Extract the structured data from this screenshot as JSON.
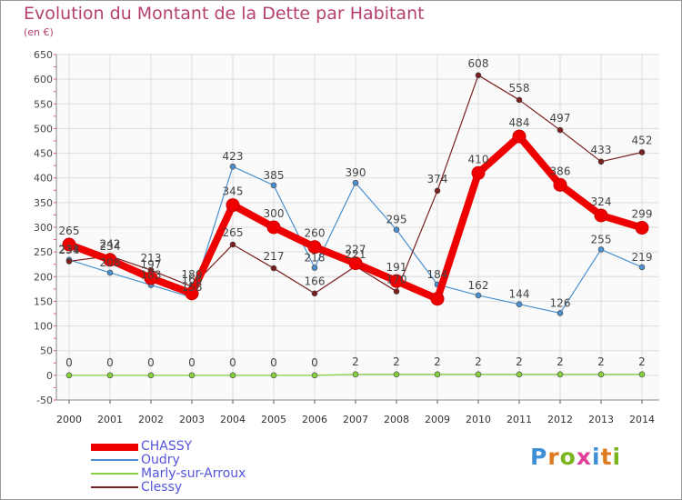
{
  "title": "Evolution du Montant de la Dette par Habitant",
  "subtitle": "(en €)",
  "logo": {
    "text": "Proxiti",
    "letter_colors": [
      "#3d8fd6",
      "#e07a1f",
      "#7ab51d",
      "#e0409a",
      "#3d8fd6",
      "#e07a1f",
      "#7ab51d"
    ]
  },
  "chart_data": {
    "type": "line",
    "x": [
      "2000",
      "2001",
      "2002",
      "2003",
      "2004",
      "2005",
      "2006",
      "2007",
      "2008",
      "2009",
      "2010",
      "2011",
      "2012",
      "2013",
      "2014"
    ],
    "ylim": [
      -50,
      650
    ],
    "yticks": [
      -50,
      0,
      50,
      100,
      150,
      200,
      250,
      300,
      350,
      400,
      450,
      500,
      550,
      600,
      650
    ],
    "grid": true,
    "legend_position": "bottom-left",
    "series": [
      {
        "name": "CHASSY",
        "color": "#ee0000",
        "values": [
          265,
          234,
          197,
          166,
          345,
          300,
          260,
          227,
          191,
          155,
          410,
          484,
          386,
          324,
          299
        ],
        "labels": [
          "265",
          "234",
          "197",
          "166",
          "345",
          "300",
          "260",
          "227",
          "191",
          "",
          "410",
          "484",
          "386",
          "324",
          "299"
        ]
      },
      {
        "name": "Oudry",
        "color": "#4a90d0",
        "values": [
          234,
          208,
          183,
          158,
          423,
          385,
          218,
          390,
          295,
          184,
          162,
          144,
          126,
          255,
          219
        ],
        "labels": [
          "234",
          "208",
          "183",
          "158",
          "423",
          "385",
          "218",
          "390",
          "295",
          "184",
          "162",
          "144",
          "126",
          "255",
          "219"
        ]
      },
      {
        "name": "Marly-sur-Arroux",
        "color": "#86cf3e",
        "values": [
          0,
          0,
          0,
          0,
          0,
          0,
          0,
          2,
          2,
          2,
          2,
          2,
          2,
          2,
          2
        ],
        "labels": [
          "0",
          "0",
          "0",
          "0",
          "0",
          "0",
          "0",
          "2",
          "2",
          "2",
          "2",
          "2",
          "2",
          "2",
          "2"
        ]
      },
      {
        "name": "Clessy",
        "color": "#7a1f1f",
        "values": [
          231,
          242,
          213,
          180,
          265,
          217,
          166,
          221,
          170,
          374,
          608,
          558,
          497,
          433,
          452
        ],
        "labels": [
          "231",
          "242",
          "213",
          "180",
          "265",
          "217",
          "166",
          "221",
          "170",
          "374",
          "608",
          "558",
          "497",
          "433",
          "452"
        ]
      }
    ]
  }
}
